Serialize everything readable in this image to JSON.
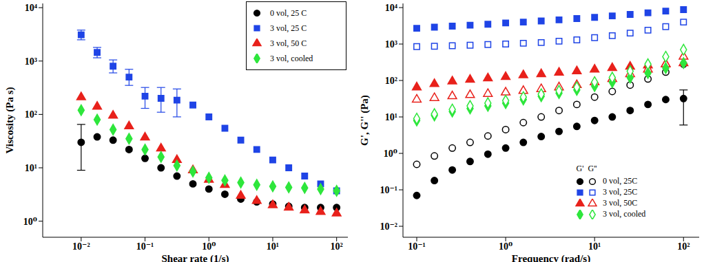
{
  "chart_data": [
    {
      "type": "scatter",
      "x_label": "Shear rate (1/s)",
      "y_label": "Viscosity (Pa s)",
      "log": true,
      "legend": "upper right",
      "xlim": [
        0.0025,
        150
      ],
      "ylim": [
        0.5,
        12000
      ],
      "xticks": [
        {
          "value": 0.01,
          "label": "10⁻²"
        },
        {
          "value": 0.1,
          "label": "10⁻¹"
        },
        {
          "value": 1,
          "label": "10⁰"
        },
        {
          "value": 10,
          "label": "10¹"
        },
        {
          "value": 100,
          "label": "10²"
        }
      ],
      "yticks": [
        {
          "value": 1,
          "label": "10⁰"
        },
        {
          "value": 10,
          "label": "10¹"
        },
        {
          "value": 100,
          "label": "10²"
        },
        {
          "value": 1000,
          "label": "10³"
        },
        {
          "value": 10000,
          "label": "10⁴"
        }
      ],
      "x": [
        0.01,
        0.0178,
        0.0316,
        0.0562,
        0.1,
        0.178,
        0.316,
        0.562,
        1,
        1.78,
        3.16,
        5.62,
        10,
        17.8,
        31.6,
        56.2,
        100
      ],
      "series": [
        {
          "name": "0 vol, 25 C",
          "color": "#000000",
          "marker": "circle",
          "values": [
            30,
            38,
            33,
            22,
            15,
            10,
            7,
            5,
            4,
            3.2,
            2.6,
            2.3,
            2.1,
            1.9,
            1.8,
            1.8,
            1.8
          ],
          "errors": [
            [
              9,
              65
            ],
            null,
            null,
            null,
            null,
            null,
            null,
            null,
            null,
            null,
            null,
            null,
            null,
            null,
            null,
            null,
            null
          ]
        },
        {
          "name": "3 vol, 25 C",
          "color": "#1f44e6",
          "marker": "square",
          "values": [
            3100,
            1450,
            800,
            500,
            220,
            200,
            185,
            150,
            90,
            55,
            33,
            22,
            14,
            10,
            7,
            5,
            3.7
          ],
          "errors": [
            [
              2500,
              3800
            ],
            [
              1150,
              1800
            ],
            [
              600,
              1050
            ],
            [
              350,
              700
            ],
            [
              130,
              320
            ],
            [
              110,
              320
            ],
            [
              90,
              300
            ],
            null,
            null,
            null,
            null,
            null,
            null,
            null,
            null,
            null,
            null
          ]
        },
        {
          "name": "3 vol, 50 C",
          "color": "#e8211b",
          "marker": "triangle",
          "values": [
            210,
            140,
            95,
            60,
            37,
            23,
            14,
            9,
            6,
            4.8,
            3,
            2.4,
            2,
            1.8,
            1.6,
            1.5,
            1.4
          ]
        },
        {
          "name": "3 vol, cooled",
          "color": "#2ee63c",
          "marker": "diamond",
          "values": [
            120,
            80,
            52,
            35,
            22,
            16,
            11,
            8.5,
            6.5,
            5.8,
            5.3,
            4.8,
            4.5,
            4.3,
            4.2,
            4,
            3.7
          ]
        }
      ]
    },
    {
      "type": "scatter",
      "x_label": "Frequency (rad/s)",
      "y_label": "G', G'' (Pa)",
      "log": true,
      "legend": "lower right",
      "xlim": [
        0.07,
        150
      ],
      "ylim": [
        0.005,
        13000
      ],
      "xticks": [
        {
          "value": 0.1,
          "label": "10⁻¹"
        },
        {
          "value": 1,
          "label": "10⁰"
        },
        {
          "value": 10,
          "label": "10¹"
        },
        {
          "value": 100,
          "label": "10²"
        }
      ],
      "yticks": [
        {
          "value": 0.01,
          "label": "10⁻²"
        },
        {
          "value": 0.1,
          "label": "10⁻¹"
        },
        {
          "value": 1,
          "label": "10⁰"
        },
        {
          "value": 10,
          "label": "10¹"
        },
        {
          "value": 100,
          "label": "10²"
        },
        {
          "value": 1000,
          "label": "10³"
        },
        {
          "value": 10000,
          "label": "10⁴"
        }
      ],
      "moduli": [
        "G'",
        "G''"
      ],
      "x": [
        0.1,
        0.158,
        0.251,
        0.398,
        0.631,
        1,
        1.58,
        2.51,
        3.98,
        6.31,
        10,
        15.8,
        25.1,
        39.8,
        63.1,
        100
      ],
      "series": [
        {
          "name": "0 vol, 25C",
          "color": "#000000",
          "marker": "circle",
          "values": {
            "G'": [
              0.07,
              0.18,
              0.35,
              0.6,
              0.95,
              1.4,
              2,
              2.9,
              4,
              5.5,
              8,
              10,
              15,
              22,
              30,
              32
            ],
            "G''": [
              0.5,
              0.85,
              1.4,
              2,
              3,
              4.5,
              7,
              10,
              15,
              22,
              35,
              50,
              75,
              110,
              170,
              280
            ]
          },
          "errors": {
            "G'": [
              null,
              null,
              null,
              null,
              null,
              null,
              null,
              null,
              null,
              null,
              null,
              null,
              null,
              null,
              null,
              [
                6,
                55
              ]
            ]
          }
        },
        {
          "name": "3 vol, 25C",
          "color": "#1f44e6",
          "marker": "square",
          "values": {
            "G'": [
              2700,
              2900,
              3100,
              3300,
              3500,
              3800,
              4000,
              4300,
              4600,
              5000,
              5400,
              5900,
              6500,
              7200,
              8000,
              8800
            ],
            "G''": [
              850,
              870,
              900,
              930,
              970,
              1000,
              1050,
              1100,
              1200,
              1300,
              1500,
              1700,
              2000,
              2400,
              3000,
              4000
            ]
          }
        },
        {
          "name": "3 vol, 50C",
          "color": "#e8211b",
          "marker": "triangle",
          "values": {
            "G'": [
              65,
              80,
              95,
              105,
              115,
              125,
              140,
              150,
              165,
              180,
              200,
              220,
              240,
              260,
              280,
              300
            ],
            "G''": [
              30,
              33,
              37,
              40,
              43,
              47,
              52,
              58,
              65,
              75,
              90,
              110,
              150,
              200,
              280,
              450
            ]
          }
        },
        {
          "name": "3 vol, cooled",
          "color": "#2ee63c",
          "marker": "diamond",
          "values": {
            "G'": [
              8,
              11,
              14,
              17,
              20,
              24,
              30,
              37,
              45,
              55,
              70,
              90,
              120,
              160,
              220,
              300
            ],
            "G''": [
              9,
              12,
              16,
              20,
              24,
              28,
              35,
              42,
              52,
              65,
              90,
              120,
              180,
              280,
              450,
              700
            ]
          }
        }
      ]
    }
  ]
}
